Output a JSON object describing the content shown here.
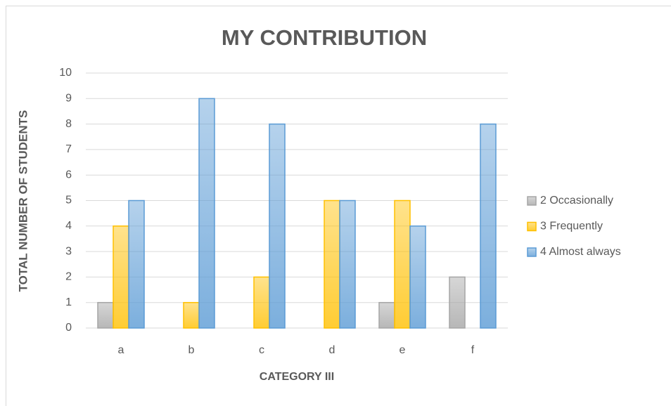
{
  "chart_data": {
    "type": "bar",
    "title": "MY CONTRIBUTION",
    "x_label": "CATEGORY III",
    "y_label": "TOTAL NUMBER OF STUDENTS",
    "categories": [
      "a",
      "b",
      "c",
      "d",
      "e",
      "f"
    ],
    "series": [
      {
        "name": "2 Occasionally",
        "color": "#a5a5a5",
        "values": [
          1,
          0,
          0,
          0,
          1,
          2
        ]
      },
      {
        "name": "3 Frequently",
        "color": "#ffc000",
        "values": [
          4,
          1,
          2,
          5,
          5,
          0
        ]
      },
      {
        "name": "4 Almost always",
        "color": "#5b9bd5",
        "values": [
          5,
          9,
          8,
          5,
          4,
          8
        ]
      }
    ],
    "ylim": [
      0,
      10
    ],
    "yticks": [
      0,
      1,
      2,
      3,
      4,
      5,
      6,
      7,
      8,
      9,
      10
    ],
    "grid": true,
    "legend": "right"
  }
}
